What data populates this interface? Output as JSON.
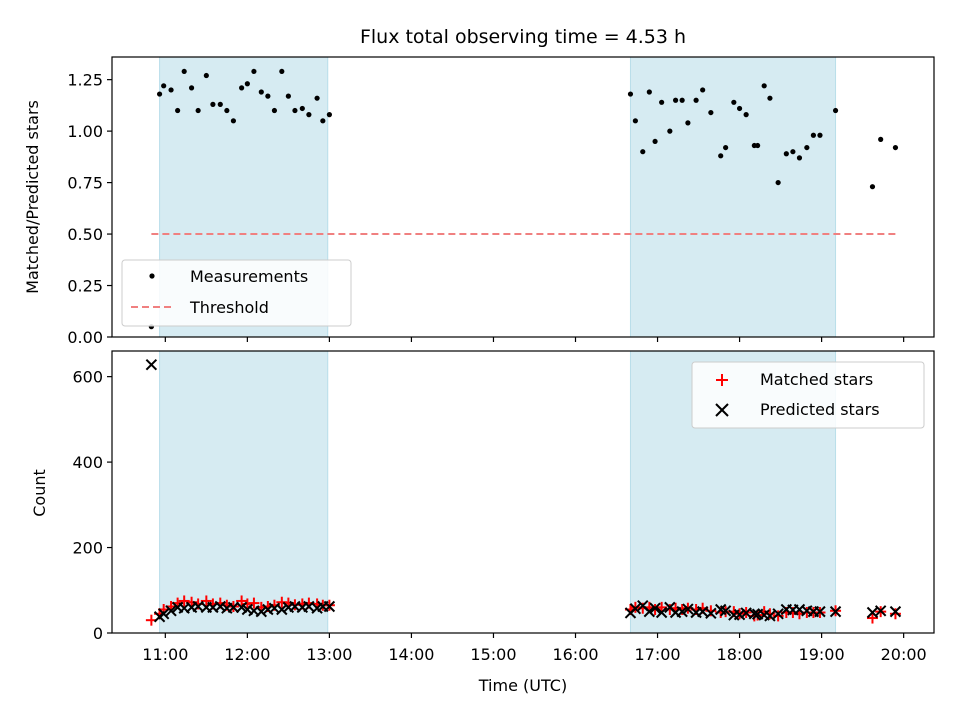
{
  "title": "Flux total observing time = 4.53 h",
  "chart_data": [
    {
      "type": "scatter",
      "panel": "top",
      "ylabel": "Matched/Predicted stars",
      "ylim": [
        0.0,
        1.36
      ],
      "yticks": [
        "0.00",
        "0.25",
        "0.50",
        "0.75",
        "1.00",
        "1.25"
      ],
      "ytick_values": [
        0,
        0.25,
        0.5,
        0.75,
        1.0,
        1.25
      ],
      "legend_placement": "lower-left",
      "shaded_intervals": [
        [
          10.93,
          12.98
        ],
        [
          16.67,
          19.17
        ]
      ],
      "series": [
        {
          "name": "Measurements",
          "x": [
            10.83,
            10.93,
            10.98,
            11.07,
            11.15,
            11.23,
            11.32,
            11.4,
            11.5,
            11.58,
            11.67,
            11.75,
            11.83,
            11.93,
            12.0,
            12.08,
            12.17,
            12.25,
            12.33,
            12.42,
            12.5,
            12.58,
            12.67,
            12.75,
            12.85,
            12.92,
            13.0,
            16.67,
            16.73,
            16.82,
            16.9,
            16.97,
            17.05,
            17.15,
            17.22,
            17.3,
            17.37,
            17.47,
            17.55,
            17.65,
            17.77,
            17.83,
            17.93,
            18.0,
            18.08,
            18.18,
            18.22,
            18.3,
            18.37,
            18.47,
            18.57,
            18.65,
            18.73,
            18.82,
            18.9,
            18.98,
            19.17,
            19.62,
            19.72,
            19.9
          ],
          "y": [
            0.05,
            1.18,
            1.22,
            1.2,
            1.1,
            1.29,
            1.21,
            1.1,
            1.27,
            1.13,
            1.13,
            1.1,
            1.05,
            1.21,
            1.23,
            1.29,
            1.19,
            1.17,
            1.1,
            1.29,
            1.17,
            1.1,
            1.11,
            1.08,
            1.16,
            1.05,
            1.08,
            1.18,
            1.05,
            0.9,
            1.19,
            0.95,
            1.14,
            1.0,
            1.15,
            1.15,
            1.04,
            1.15,
            1.2,
            1.09,
            0.88,
            0.92,
            1.14,
            1.11,
            1.08,
            0.93,
            0.93,
            1.22,
            1.16,
            0.75,
            0.89,
            0.9,
            0.87,
            0.92,
            0.98,
            0.98,
            1.1,
            0.73,
            0.96,
            0.92
          ],
          "color": "#000000",
          "marker": "dot"
        },
        {
          "name": "Threshold",
          "x": [
            10.83,
            19.9
          ],
          "y": [
            0.5,
            0.5
          ],
          "color": "#f08080",
          "style": "dashed"
        }
      ]
    },
    {
      "type": "scatter",
      "panel": "bottom",
      "xlabel": "Time (UTC)",
      "ylabel": "Count",
      "ylim": [
        0,
        660
      ],
      "yticks": [
        "0",
        "200",
        "400",
        "600"
      ],
      "ytick_values": [
        0,
        200,
        400,
        600
      ],
      "xlim": [
        10.35,
        20.37
      ],
      "xticks": [
        "11:00",
        "12:00",
        "13:00",
        "14:00",
        "15:00",
        "16:00",
        "17:00",
        "18:00",
        "19:00",
        "20:00"
      ],
      "xtick_values": [
        11,
        12,
        13,
        14,
        15,
        16,
        17,
        18,
        19,
        20
      ],
      "legend_placement": "upper-right",
      "shaded_intervals": [
        [
          10.93,
          12.98
        ],
        [
          16.67,
          19.17
        ]
      ],
      "series": [
        {
          "name": "Matched stars",
          "color": "#ff0000",
          "marker": "plus",
          "x": [
            10.83,
            10.93,
            10.98,
            11.07,
            11.15,
            11.23,
            11.32,
            11.4,
            11.5,
            11.58,
            11.67,
            11.75,
            11.83,
            11.93,
            12.0,
            12.08,
            12.17,
            12.25,
            12.33,
            12.42,
            12.5,
            12.58,
            12.67,
            12.75,
            12.85,
            12.92,
            13.0,
            16.67,
            16.73,
            16.82,
            16.9,
            16.97,
            17.05,
            17.15,
            17.22,
            17.3,
            17.37,
            17.47,
            17.55,
            17.65,
            17.77,
            17.83,
            17.93,
            18.0,
            18.08,
            18.18,
            18.22,
            18.3,
            18.37,
            18.47,
            18.57,
            18.65,
            18.73,
            18.82,
            18.9,
            18.98,
            19.17,
            19.62,
            19.72,
            19.9
          ],
          "y": [
            30,
            45,
            55,
            62,
            70,
            75,
            72,
            68,
            75,
            68,
            70,
            65,
            62,
            75,
            68,
            70,
            60,
            62,
            65,
            72,
            70,
            66,
            68,
            70,
            68,
            65,
            65,
            55,
            60,
            58,
            60,
            55,
            60,
            55,
            58,
            55,
            58,
            55,
            58,
            52,
            48,
            50,
            50,
            45,
            48,
            40,
            42,
            50,
            45,
            40,
            48,
            48,
            45,
            48,
            48,
            48,
            52,
            35,
            50,
            45
          ]
        },
        {
          "name": "Predicted stars",
          "color": "#000000",
          "marker": "x",
          "x": [
            10.83,
            10.93,
            10.98,
            11.07,
            11.15,
            11.23,
            11.32,
            11.4,
            11.5,
            11.58,
            11.67,
            11.75,
            11.83,
            11.93,
            12.0,
            12.08,
            12.17,
            12.25,
            12.33,
            12.42,
            12.5,
            12.58,
            12.67,
            12.75,
            12.85,
            12.92,
            13.0,
            16.67,
            16.73,
            16.82,
            16.9,
            16.97,
            17.05,
            17.15,
            17.22,
            17.3,
            17.37,
            17.47,
            17.55,
            17.65,
            17.77,
            17.83,
            17.93,
            18.0,
            18.08,
            18.18,
            18.22,
            18.3,
            18.37,
            18.47,
            18.57,
            18.65,
            18.73,
            18.82,
            18.9,
            18.98,
            19.17,
            19.62,
            19.72,
            19.9
          ],
          "y": [
            628,
            38,
            45,
            52,
            60,
            58,
            60,
            62,
            60,
            60,
            62,
            58,
            60,
            60,
            55,
            52,
            50,
            55,
            58,
            55,
            60,
            62,
            60,
            62,
            58,
            62,
            62,
            47,
            57,
            64,
            50,
            58,
            48,
            60,
            48,
            50,
            56,
            48,
            50,
            46,
            55,
            52,
            42,
            43,
            47,
            45,
            44,
            42,
            40,
            45,
            55,
            54,
            55,
            52,
            50,
            50,
            50,
            48,
            52,
            50
          ]
        }
      ]
    }
  ]
}
